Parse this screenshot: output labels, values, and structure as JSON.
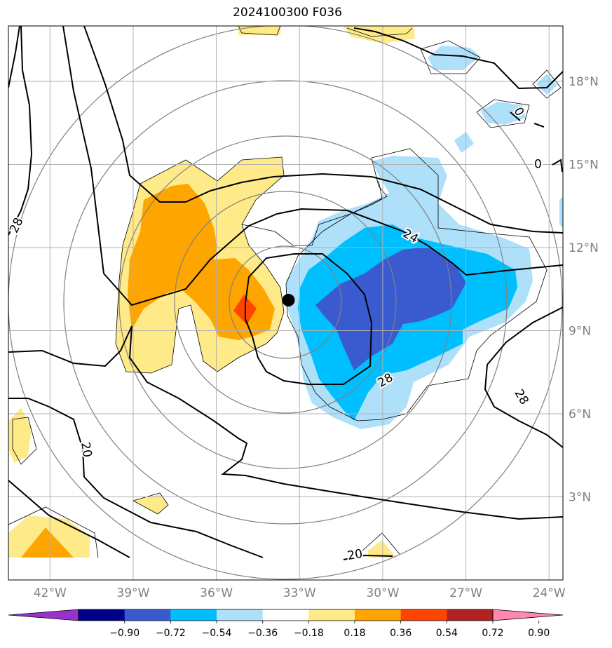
{
  "title": "2024100300 F036",
  "map": {
    "lon_range": [
      -43.5,
      -23.5
    ],
    "lat_range": [
      0.0,
      20.0
    ],
    "lon_ticks": [
      {
        "value": -42,
        "label": "42°W"
      },
      {
        "value": -39,
        "label": "39°W"
      },
      {
        "value": -36,
        "label": "36°W"
      },
      {
        "value": -33,
        "label": "33°W"
      },
      {
        "value": -30,
        "label": "30°W"
      },
      {
        "value": -27,
        "label": "27°W"
      },
      {
        "value": -24,
        "label": "24°W"
      }
    ],
    "lat_ticks": [
      {
        "value": 3,
        "label": "3°N"
      },
      {
        "value": 6,
        "label": "6°N"
      },
      {
        "value": 9,
        "label": "9°N"
      },
      {
        "value": 12,
        "label": "12°N"
      },
      {
        "value": 15,
        "label": "15°N"
      },
      {
        "value": 18,
        "label": "18°N"
      }
    ],
    "grid": true,
    "center_marker": {
      "lon": -33.4,
      "lat": 10.1
    },
    "range_rings_deg": [
      2,
      4,
      6,
      8,
      10
    ],
    "contour_labels": [
      {
        "text": "28",
        "lon": -43.2,
        "lat": 12.8,
        "rotate": -65
      },
      {
        "text": "24",
        "lon": -29.0,
        "lat": 12.4,
        "rotate": 30
      },
      {
        "text": "28",
        "lon": -29.9,
        "lat": 7.2,
        "rotate": -30
      },
      {
        "text": "28",
        "lon": -25.0,
        "lat": 6.6,
        "rotate": 60
      },
      {
        "text": "20",
        "lon": -40.7,
        "lat": 4.7,
        "rotate": 80
      },
      {
        "text": "20",
        "lon": -31.0,
        "lat": 0.9,
        "rotate": -10
      },
      {
        "text": "0",
        "lon": -25.1,
        "lat": 16.9,
        "rotate": 60
      },
      {
        "text": "0",
        "lon": -24.4,
        "lat": 15.0,
        "rotate": 0
      }
    ]
  },
  "colorbar": {
    "colors": [
      "#9932cc",
      "#00008b",
      "#3a5bd0",
      "#00bfff",
      "#aee0fa",
      "#ffffff",
      "#ffea8a",
      "#ffa500",
      "#ff4500",
      "#b22222",
      "#ff88b0"
    ],
    "tick_labels": [
      "−0.90",
      "−0.72",
      "−0.54",
      "−0.36",
      "−0.18",
      "0.18",
      "0.36",
      "0.54",
      "0.72",
      "0.90"
    ],
    "extend": "both"
  }
}
